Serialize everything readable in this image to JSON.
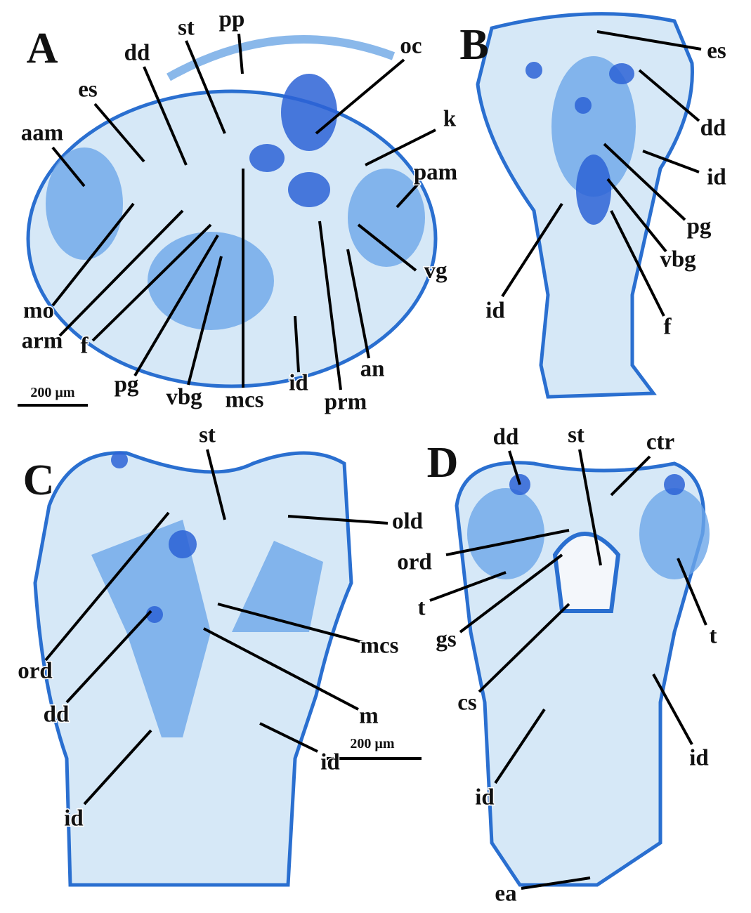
{
  "panels": [
    {
      "letter": "A",
      "labels": [
        "st",
        "pp",
        "dd",
        "oc",
        "es",
        "k",
        "aam",
        "pam",
        "mo",
        "vg",
        "arm",
        "an",
        "f",
        "pg",
        "vbg",
        "mcs",
        "id",
        "prm"
      ],
      "scale_bar": "200 µm"
    },
    {
      "letter": "B",
      "labels": [
        "es",
        "dd",
        "id",
        "pg",
        "vbg",
        "f",
        "id"
      ]
    },
    {
      "letter": "C",
      "labels": [
        "st",
        "old",
        "mcs",
        "ord",
        "m",
        "dd",
        "id",
        "id"
      ],
      "scale_bar": "200 µm"
    },
    {
      "letter": "D",
      "labels": [
        "dd",
        "st",
        "ctr",
        "ord",
        "t",
        "gs",
        "t",
        "cs",
        "id",
        "id",
        "ea"
      ]
    }
  ]
}
